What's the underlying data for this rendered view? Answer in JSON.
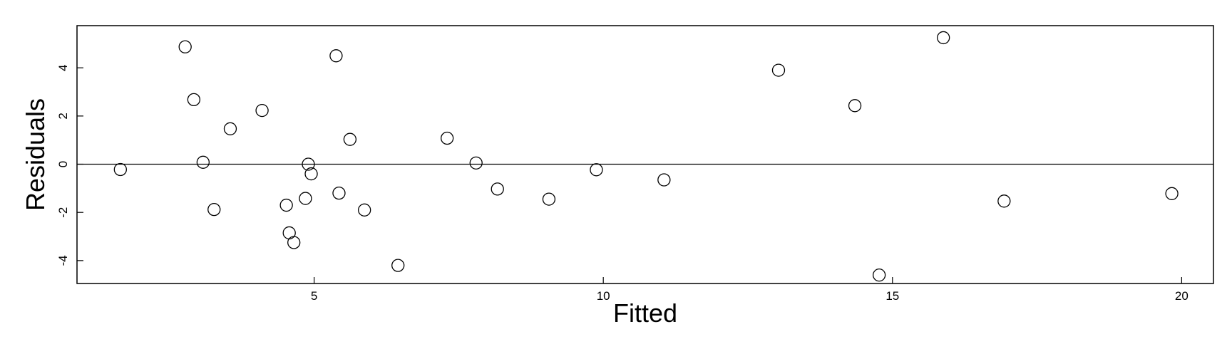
{
  "chart_data": {
    "type": "scatter",
    "title": "",
    "xlabel": "Fitted",
    "ylabel": "Residuals",
    "xlim": [
      0.9,
      20.55
    ],
    "ylim": [
      -4.95,
      5.75
    ],
    "x_ticks": [
      5,
      10,
      15,
      20
    ],
    "x_tick_labels": [
      "5",
      "10",
      "15",
      "20"
    ],
    "y_ticks": [
      -4,
      -2,
      0,
      2,
      4
    ],
    "y_tick_labels": [
      "-4",
      "-2",
      "0",
      "2",
      "4"
    ],
    "reference_line": 0,
    "marker": "open-circle",
    "grid": false,
    "points": [
      {
        "x": 1.65,
        "y": -0.22
      },
      {
        "x": 2.77,
        "y": 4.87
      },
      {
        "x": 2.92,
        "y": 2.68
      },
      {
        "x": 3.08,
        "y": 0.08
      },
      {
        "x": 3.27,
        "y": -1.88
      },
      {
        "x": 3.55,
        "y": 1.47
      },
      {
        "x": 4.1,
        "y": 2.23
      },
      {
        "x": 4.52,
        "y": -1.7
      },
      {
        "x": 4.57,
        "y": -2.85
      },
      {
        "x": 4.65,
        "y": -3.25
      },
      {
        "x": 4.85,
        "y": -1.42
      },
      {
        "x": 4.9,
        "y": 0.0
      },
      {
        "x": 4.95,
        "y": -0.4
      },
      {
        "x": 5.38,
        "y": 4.5
      },
      {
        "x": 5.43,
        "y": -1.2
      },
      {
        "x": 5.62,
        "y": 1.03
      },
      {
        "x": 5.87,
        "y": -1.9
      },
      {
        "x": 6.45,
        "y": -4.2
      },
      {
        "x": 7.3,
        "y": 1.08
      },
      {
        "x": 7.8,
        "y": 0.05
      },
      {
        "x": 8.17,
        "y": -1.03
      },
      {
        "x": 9.06,
        "y": -1.45
      },
      {
        "x": 9.88,
        "y": -0.23
      },
      {
        "x": 11.05,
        "y": -0.65
      },
      {
        "x": 13.03,
        "y": 3.9
      },
      {
        "x": 14.35,
        "y": 2.43
      },
      {
        "x": 14.77,
        "y": -4.6
      },
      {
        "x": 15.88,
        "y": 5.25
      },
      {
        "x": 16.93,
        "y": -1.53
      },
      {
        "x": 19.83,
        "y": -1.22
      }
    ]
  }
}
